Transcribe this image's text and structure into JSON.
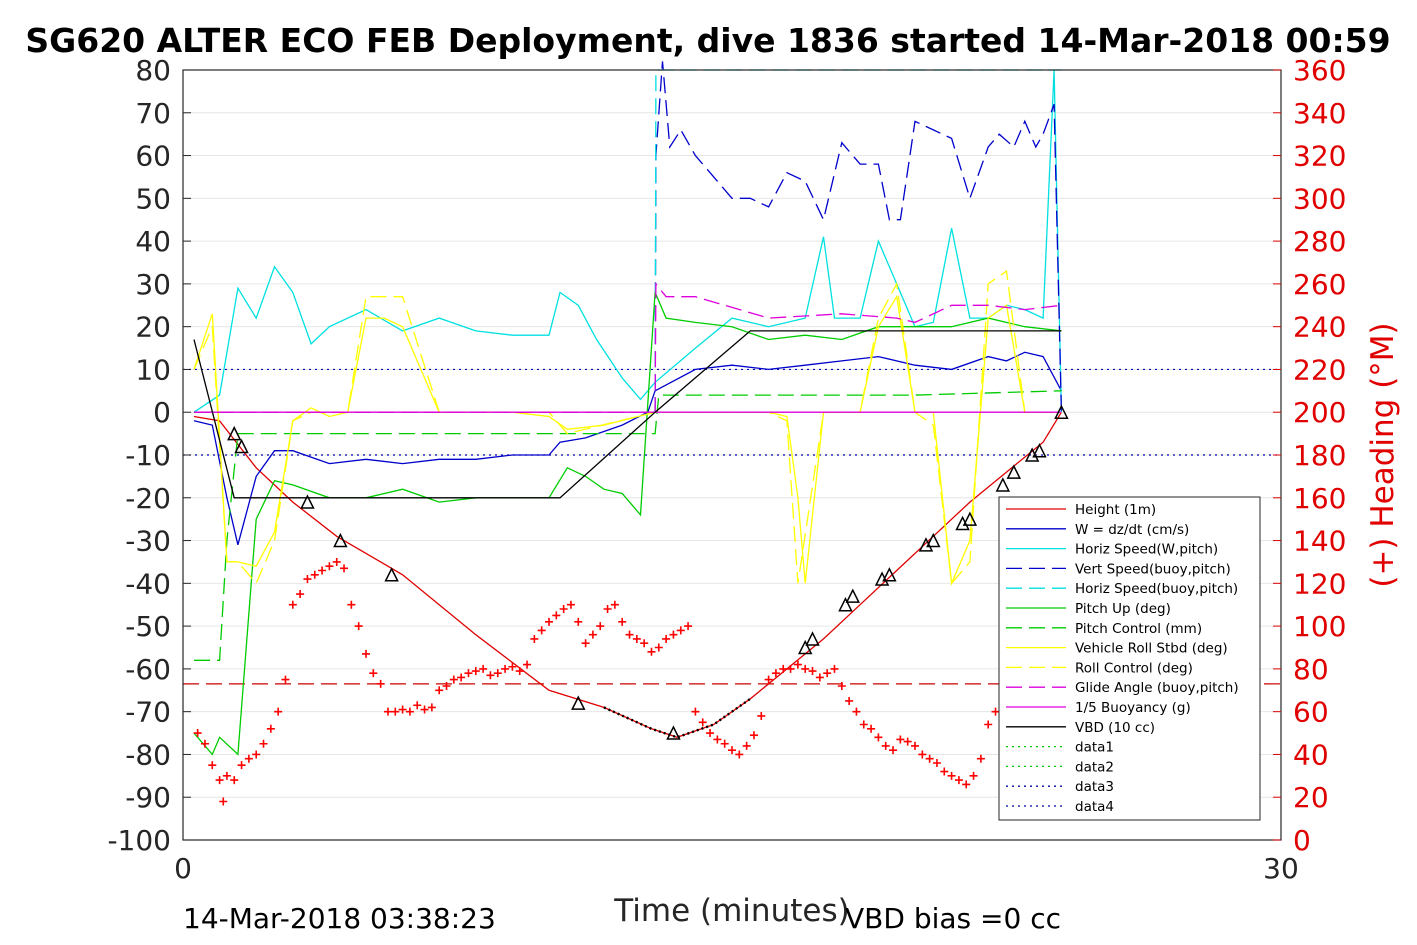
{
  "chart_data": {
    "type": "line",
    "title": "SG620 ALTER ECO FEB Deployment, dive 1836 started 14-Mar-2018 00:59",
    "xlabel": "Time (minutes)",
    "ylabel_right": "(+) Heading (°M)",
    "xlim": [
      0,
      30
    ],
    "ylim": [
      -100,
      80
    ],
    "ylim_right": [
      0,
      360
    ],
    "x_ticks": [
      "0",
      "30"
    ],
    "y_ticks": [
      "80",
      "70",
      "60",
      "50",
      "40",
      "30",
      "20",
      "10",
      "0",
      "-10",
      "-20",
      "-30",
      "-40",
      "-50",
      "-60",
      "-70",
      "-80",
      "-90",
      "-100"
    ],
    "y_right_ticks": [
      "360",
      "340",
      "320",
      "300",
      "280",
      "260",
      "240",
      "220",
      "200",
      "180",
      "160",
      "140",
      "120",
      "100",
      "80",
      "60",
      "40",
      "20",
      "0"
    ],
    "footer_left": "14-Mar-2018 03:38:23",
    "footer_right": "VBD bias =0 cc",
    "grid": true,
    "legend_position": "bottom-right",
    "ref_lines": [
      {
        "name": "data1",
        "y": 10,
        "color": "#0000aa"
      },
      {
        "name": "data2",
        "y": -10,
        "color": "#0000aa"
      },
      {
        "name": "heading-ref",
        "axis": "right",
        "y": 73,
        "color": "#cc0000"
      }
    ],
    "series": [
      {
        "name": "Height (1m)",
        "color": "#e00000",
        "style": "solid",
        "x": [
          0.3,
          1.0,
          2.0,
          3.0,
          4.2,
          6.0,
          8.0,
          10.0,
          11.5,
          12.8,
          13.5,
          14.5,
          15.5,
          16.5,
          17.5,
          18.5,
          19.5,
          20.5,
          21.5,
          22.5,
          23.5,
          24.0
        ],
        "y": [
          -1,
          -2,
          -13,
          -21,
          -29,
          -38,
          -52,
          -65,
          -69,
          -74,
          -76,
          -73,
          -67,
          -60,
          -53,
          -45,
          -37,
          -29,
          -21,
          -14,
          -7,
          0
        ]
      },
      {
        "name": "W = dz/dt (cm/s)",
        "color": "#0000cc",
        "style": "solid",
        "x": [
          0.3,
          0.8,
          1.2,
          1.5,
          2.0,
          2.5,
          3.0,
          4.0,
          5.0,
          6.0,
          7.0,
          8.0,
          9.0,
          10.0,
          10.3,
          11.0,
          12.0,
          12.7,
          12.9,
          14.0,
          15.0,
          16.0,
          17.0,
          18.0,
          19.0,
          20.0,
          21.0,
          22.0,
          22.5,
          23.0,
          23.5,
          24.0
        ],
        "y": [
          -2,
          -3,
          -20,
          -31,
          -15,
          -9,
          -9,
          -12,
          -11,
          -12,
          -11,
          -11,
          -10,
          -10,
          -7,
          -6,
          -3,
          0,
          5,
          10,
          11,
          10,
          11,
          12,
          13,
          11,
          10,
          13,
          12,
          14,
          13,
          5
        ]
      },
      {
        "name": "Horiz Speed(W,pitch)",
        "color": "#00e0e0",
        "style": "solid",
        "x": [
          0.3,
          1.0,
          1.5,
          2.0,
          2.5,
          3.0,
          3.5,
          4.0,
          5.0,
          6.0,
          7.0,
          8.0,
          9.0,
          10.0,
          10.3,
          10.8,
          11.3,
          12.0,
          12.5,
          12.9,
          14.0,
          15.0,
          16.0,
          17.0,
          17.5,
          17.8,
          18.5,
          19.0,
          19.5,
          20.0,
          20.5,
          21.0,
          21.5,
          22.0,
          22.5,
          23.0,
          23.5,
          23.8,
          24.0
        ],
        "y": [
          0,
          4,
          29,
          22,
          34,
          28,
          16,
          20,
          24,
          19,
          22,
          19,
          18,
          18,
          28,
          25,
          17,
          8,
          3,
          7,
          15,
          22,
          20,
          22,
          41,
          22,
          22,
          40,
          30,
          20,
          21,
          43,
          22,
          22,
          25,
          24,
          22,
          80,
          0
        ]
      },
      {
        "name": "Vert Speed(buoy,pitch)",
        "color": "#0000cc",
        "style": "dashed",
        "x": [
          0.3,
          12.9,
          12.92,
          13.1,
          13.3,
          13.6,
          14.0,
          14.5,
          15.0,
          15.5,
          16.0,
          16.5,
          17.0,
          17.5,
          18.0,
          18.5,
          19.0,
          19.3,
          19.6,
          20.0,
          20.5,
          21.0,
          21.5,
          22.0,
          22.3,
          22.7,
          23.0,
          23.3,
          23.5,
          23.8,
          24.0
        ],
        "y": [
          0,
          0,
          60,
          82,
          62,
          66,
          60,
          55,
          50,
          50,
          48,
          56,
          54,
          45,
          63,
          58,
          58,
          45,
          45,
          68,
          66,
          64,
          50,
          62,
          65,
          62,
          68,
          62,
          65,
          72,
          0
        ]
      },
      {
        "name": "Horiz Speed(buoy,pitch)",
        "color": "#00e0e0",
        "style": "dashed",
        "x": [
          0.3,
          12.9,
          12.92,
          13.1,
          24.0
        ],
        "y": [
          0,
          0,
          80,
          80,
          80
        ]
      },
      {
        "name": "Pitch Up (deg)",
        "color": "#00cc00",
        "style": "solid",
        "x": [
          0.3,
          0.8,
          1.0,
          1.5,
          2.0,
          2.5,
          3.0,
          4.0,
          5.0,
          6.0,
          7.0,
          8.0,
          9.0,
          10.0,
          10.5,
          11.0,
          11.5,
          12.0,
          12.5,
          12.9,
          13.2,
          14.0,
          15.0,
          16.0,
          17.0,
          18.0,
          19.0,
          20.0,
          21.0,
          22.0,
          23.0,
          24.0
        ],
        "y": [
          -75,
          -80,
          -76,
          -80,
          -25,
          -16,
          -17,
          -20,
          -20,
          -18,
          -21,
          -20,
          -20,
          -20,
          -13,
          -15,
          -18,
          -19,
          -24,
          28,
          22,
          21,
          20,
          17,
          18,
          17,
          20,
          20,
          20,
          22,
          20,
          19
        ]
      },
      {
        "name": "Pitch Control (mm)",
        "color": "#00cc00",
        "style": "dashed",
        "x": [
          0.3,
          1.0,
          1.2,
          1.5,
          2.0,
          4.0,
          8.0,
          10.0,
          12.9,
          13.0,
          16.0,
          20.0,
          24.0
        ],
        "y": [
          -58,
          -58,
          -30,
          -5,
          -5,
          -5,
          -5,
          -5,
          -5,
          4,
          4,
          4,
          5
        ]
      },
      {
        "name": "Vehicle Roll Stbd (deg)",
        "color": "#ffff00",
        "style": "solid",
        "x": [
          0.3,
          0.8,
          1.2,
          1.5,
          2.0,
          2.5,
          3.0,
          3.5,
          4.0,
          4.5,
          5.0,
          5.5,
          6.0,
          7.0,
          8.0,
          9.0,
          10.0,
          10.5,
          11.5,
          12.9,
          14.0,
          15.0,
          16.0,
          16.5,
          16.8,
          17.0,
          17.5,
          18.0,
          18.5,
          19.0,
          19.5,
          20.0,
          20.5,
          21.0,
          21.5,
          22.0,
          22.5,
          23.0,
          23.5,
          24.0
        ],
        "y": [
          10,
          23,
          -35,
          -35,
          -36,
          -28,
          -2,
          1,
          -1,
          0,
          22,
          22,
          20,
          0,
          0,
          0,
          -1,
          -4,
          -3,
          0,
          0,
          0,
          0,
          -1,
          -20,
          -40,
          0,
          0,
          0,
          20,
          27,
          0,
          0,
          -40,
          -30,
          22,
          25,
          0,
          0,
          0
        ]
      },
      {
        "name": "Roll Control (deg)",
        "color": "#ffff00",
        "style": "dashed",
        "x": [
          0.3,
          0.8,
          1.2,
          1.5,
          2.0,
          2.5,
          3.0,
          3.5,
          4.0,
          4.5,
          5.0,
          5.5,
          6.0,
          7.0,
          8.0,
          9.0,
          10.0,
          10.5,
          12.9,
          14.0,
          16.0,
          16.5,
          16.8,
          17.5,
          18.5,
          19.0,
          19.5,
          20.0,
          20.5,
          21.0,
          21.5,
          22.0,
          22.5,
          23.0,
          23.5,
          24.0
        ],
        "y": [
          10,
          20,
          -35,
          -35,
          -40,
          -30,
          -2,
          0,
          0,
          0,
          27,
          27,
          27,
          0,
          0,
          0,
          0,
          -5,
          0,
          0,
          0,
          -2,
          -40,
          0,
          0,
          22,
          30,
          0,
          -3,
          -40,
          -35,
          30,
          33,
          0,
          0,
          0
        ]
      },
      {
        "name": "Glide Angle (buoy,pitch)",
        "color": "#dd00dd",
        "style": "dashed",
        "x": [
          0.3,
          12.9,
          12.92,
          13.2,
          14.0,
          16.0,
          18.0,
          19.5,
          20.0,
          21.0,
          22.0,
          23.0,
          24.0
        ],
        "y": [
          0,
          0,
          30,
          27,
          27,
          22,
          23,
          22,
          21,
          25,
          25,
          24,
          25
        ]
      },
      {
        "name": "1/5 Buoyancy (g)",
        "color": "#dd00dd",
        "style": "solid",
        "x": [
          0.3,
          12.9,
          12.92,
          24.0
        ],
        "y": [
          0,
          0,
          0,
          0
        ]
      },
      {
        "name": "VBD (10 cc)",
        "color": "#000000",
        "style": "solid",
        "x": [
          0.3,
          1.4,
          10.3,
          12.9,
          15.5,
          24.0
        ],
        "y": [
          17,
          -20,
          -20,
          0,
          19,
          19
        ]
      },
      {
        "name": "data1",
        "color": "#00cc00",
        "style": "dotted",
        "x": [],
        "y": []
      },
      {
        "name": "data2",
        "color": "#00cc00",
        "style": "dotted",
        "x": [],
        "y": []
      },
      {
        "name": "data3",
        "color": "#0000aa",
        "style": "dotted",
        "x": [],
        "y": []
      },
      {
        "name": "data4",
        "color": "#0000aa",
        "style": "dotted",
        "x": [],
        "y": []
      }
    ],
    "heading": {
      "name": "Heading (°M)",
      "axis": "right",
      "color": "#ff0000",
      "x": [
        0.4,
        0.6,
        0.8,
        1.0,
        1.1,
        1.2,
        1.4,
        1.6,
        1.8,
        2.0,
        2.2,
        2.4,
        2.6,
        2.8,
        3.0,
        3.2,
        3.4,
        3.6,
        3.8,
        4.0,
        4.2,
        4.4,
        4.6,
        4.8,
        5.0,
        5.2,
        5.4,
        5.6,
        5.8,
        6.0,
        6.2,
        6.4,
        6.6,
        6.8,
        7.0,
        7.2,
        7.4,
        7.6,
        7.8,
        8.0,
        8.2,
        8.4,
        8.6,
        8.8,
        9.0,
        9.2,
        9.4,
        9.6,
        9.8,
        10.0,
        10.2,
        10.4,
        10.6,
        10.8,
        11.0,
        11.2,
        11.4,
        11.6,
        11.8,
        12.0,
        12.2,
        12.4,
        12.6,
        12.8,
        13.0,
        13.2,
        13.4,
        13.6,
        13.8,
        14.0,
        14.2,
        14.4,
        14.6,
        14.8,
        15.0,
        15.2,
        15.4,
        15.6,
        15.8,
        16.0,
        16.2,
        16.4,
        16.6,
        16.8,
        17.0,
        17.2,
        17.4,
        17.6,
        17.8,
        18.0,
        18.2,
        18.4,
        18.6,
        18.8,
        19.0,
        19.2,
        19.4,
        19.6,
        19.8,
        20.0,
        20.2,
        20.4,
        20.6,
        20.8,
        21.0,
        21.2,
        21.4,
        21.6,
        21.8,
        22.0,
        22.2
      ],
      "y": [
        50,
        45,
        35,
        28,
        18,
        30,
        28,
        35,
        38,
        40,
        45,
        52,
        60,
        75,
        110,
        115,
        122,
        124,
        126,
        128,
        130,
        127,
        110,
        100,
        87,
        78,
        73,
        60,
        60,
        61,
        60,
        63,
        61,
        62,
        70,
        72,
        75,
        76,
        78,
        79,
        80,
        77,
        78,
        80,
        81,
        79,
        82,
        94,
        98,
        102,
        105,
        108,
        110,
        102,
        92,
        96,
        100,
        108,
        110,
        102,
        96,
        94,
        92,
        88,
        90,
        94,
        96,
        98,
        100,
        60,
        55,
        50,
        47,
        45,
        42,
        40,
        44,
        49,
        58,
        75,
        78,
        80,
        80,
        82,
        80,
        79,
        76,
        78,
        80,
        72,
        65,
        60,
        54,
        52,
        48,
        44,
        42,
        47,
        46,
        44,
        40,
        38,
        36,
        32,
        30,
        28,
        26,
        30,
        38,
        54,
        60
      ]
    },
    "markers": {
      "shape": "triangle",
      "x": [
        1.4,
        1.6,
        3.4,
        4.3,
        5.7,
        10.8,
        13.4,
        17.0,
        17.2,
        18.1,
        18.3,
        19.1,
        19.3,
        20.3,
        20.5,
        21.3,
        21.5,
        22.4,
        22.7,
        23.2,
        23.4,
        24.0
      ],
      "y": [
        -5,
        -8,
        -21,
        -30,
        -38,
        -68,
        -75,
        -55,
        -53,
        -45,
        -43,
        -39,
        -38,
        -31,
        -30,
        -26,
        -25,
        -17,
        -14,
        -10,
        -9,
        0
      ]
    }
  }
}
